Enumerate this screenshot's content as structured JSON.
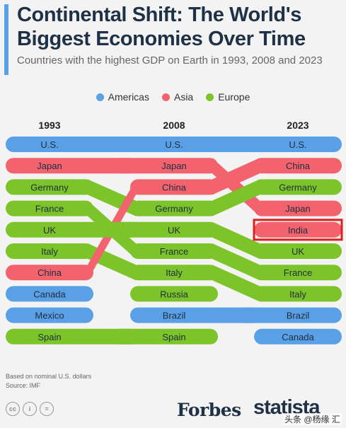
{
  "header": {
    "title": "Continental Shift: The World's Biggest Economies Over Time",
    "subtitle": "Countries with the highest GDP on Earth in 1993, 2008 and 2023"
  },
  "legend": [
    {
      "label": "Americas",
      "color": "#5aa0e6"
    },
    {
      "label": "Asia",
      "color": "#f2636d"
    },
    {
      "label": "Europe",
      "color": "#7dc42a"
    }
  ],
  "chart_data": {
    "type": "bump",
    "title": "Continental Shift: The World's Biggest Economies Over Time",
    "columns": [
      "1993",
      "2008",
      "2023"
    ],
    "region_colors": {
      "Americas": "#5aa0e6",
      "Asia": "#f2636d",
      "Europe": "#7dc42a"
    },
    "series": [
      {
        "name": "U.S.",
        "region": "Americas",
        "ranks": [
          1,
          1,
          1
        ]
      },
      {
        "name": "Japan",
        "region": "Asia",
        "ranks": [
          2,
          2,
          4
        ]
      },
      {
        "name": "Germany",
        "region": "Europe",
        "ranks": [
          3,
          4,
          3
        ]
      },
      {
        "name": "France",
        "region": "Europe",
        "ranks": [
          4,
          6,
          7
        ]
      },
      {
        "name": "UK",
        "region": "Europe",
        "ranks": [
          5,
          5,
          6
        ]
      },
      {
        "name": "Italy",
        "region": "Europe",
        "ranks": [
          6,
          7,
          8
        ]
      },
      {
        "name": "China",
        "region": "Asia",
        "ranks": [
          7,
          3,
          2
        ]
      },
      {
        "name": "Canada",
        "region": "Americas",
        "ranks": [
          8,
          null,
          10
        ]
      },
      {
        "name": "Mexico",
        "region": "Americas",
        "ranks": [
          9,
          null,
          null
        ]
      },
      {
        "name": "Spain",
        "region": "Europe",
        "ranks": [
          10,
          10,
          null
        ]
      },
      {
        "name": "Russia",
        "region": "Europe",
        "ranks": [
          null,
          8,
          null
        ]
      },
      {
        "name": "Brazil",
        "region": "Americas",
        "ranks": [
          null,
          9,
          9
        ]
      },
      {
        "name": "India",
        "region": "Asia",
        "ranks": [
          null,
          null,
          5
        ]
      }
    ],
    "highlight": {
      "name": "India",
      "column": "2023",
      "outline_color": "#e02020"
    }
  },
  "footnote": {
    "line1": "Based on nominal U.S. dollars",
    "line2": "Source: IMF"
  },
  "branding": {
    "forbes": "Forbes",
    "statista": "statista",
    "watermark": "头条 @杨缘 汇",
    "cc_icons": [
      "cc",
      "i",
      "="
    ]
  }
}
